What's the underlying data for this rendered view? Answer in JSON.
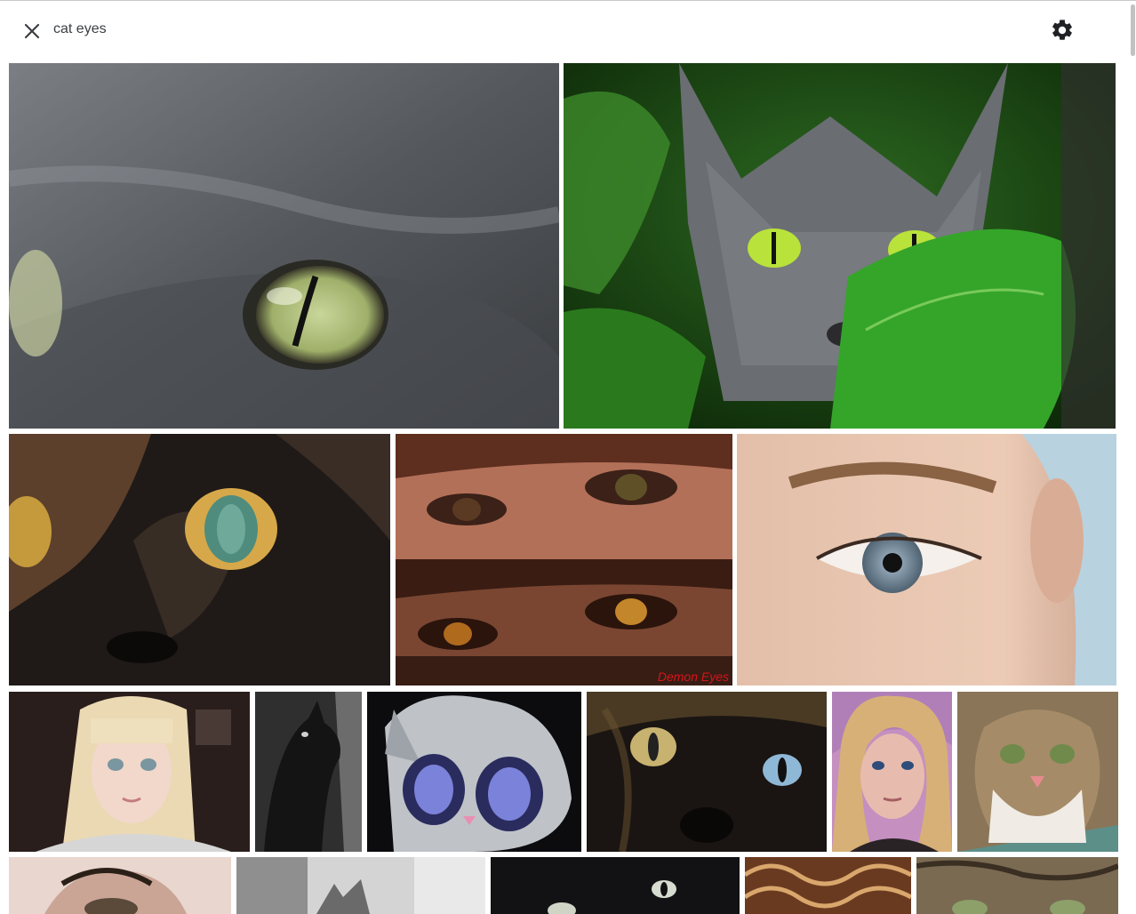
{
  "search": {
    "query": "cat eyes",
    "close_icon": "close-icon",
    "settings_icon": "gear-icon"
  },
  "images": [
    {
      "id": "img-1",
      "desc": "gray cat eye close-up"
    },
    {
      "id": "img-2",
      "desc": "gray cat in green leaves"
    },
    {
      "id": "img-3",
      "desc": "tortoiseshell cat eye"
    },
    {
      "id": "img-4",
      "desc": "human demon eyes",
      "caption": "Demon Eyes"
    },
    {
      "id": "img-5",
      "desc": "blue human eye"
    },
    {
      "id": "img-6",
      "desc": "blonde girl portrait"
    },
    {
      "id": "img-7",
      "desc": "black and white cat profile"
    },
    {
      "id": "img-8",
      "desc": "cartoon cat painting"
    },
    {
      "id": "img-9",
      "desc": "black cat odd eyes"
    },
    {
      "id": "img-10",
      "desc": "woman selfie"
    },
    {
      "id": "img-11",
      "desc": "fluffy tabby cat"
    },
    {
      "id": "img-12",
      "desc": "eye with eyelashes"
    },
    {
      "id": "img-13",
      "desc": "gray cat grayscale"
    },
    {
      "id": "img-14",
      "desc": "black cat face"
    },
    {
      "id": "img-15",
      "desc": "ornate pattern"
    },
    {
      "id": "img-16",
      "desc": "tabby cat eyes"
    }
  ],
  "colors": {
    "accent": "#3c4043"
  }
}
